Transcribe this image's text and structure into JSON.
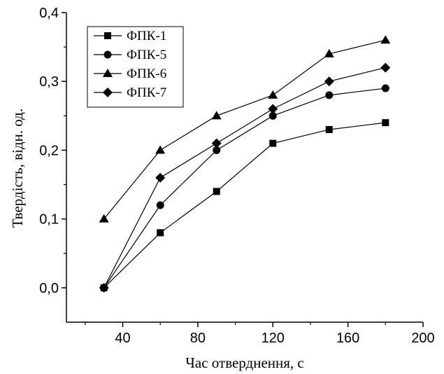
{
  "chart_data": {
    "type": "line",
    "title": "",
    "xlabel": "Час отверднення, с",
    "ylabel": "Твердість, відн. од.",
    "xlim": [
      10,
      200
    ],
    "ylim": [
      -0.05,
      0.4
    ],
    "x_ticks": [
      {
        "value": 40,
        "label": "40"
      },
      {
        "value": 80,
        "label": "80"
      },
      {
        "value": 120,
        "label": "120"
      },
      {
        "value": 160,
        "label": "160"
      },
      {
        "value": 200,
        "label": "200"
      }
    ],
    "y_ticks": [
      {
        "value": 0.0,
        "label": "0,0"
      },
      {
        "value": 0.1,
        "label": "0,1"
      },
      {
        "value": 0.2,
        "label": "0,2"
      },
      {
        "value": 0.3,
        "label": "0,3"
      },
      {
        "value": 0.4,
        "label": "0,4"
      }
    ],
    "grid": false,
    "legend_position": "top-left",
    "series": [
      {
        "name": "ФПК-1",
        "marker": "square",
        "points": [
          [
            30,
            0.0
          ],
          [
            60,
            0.08
          ],
          [
            90,
            0.14
          ],
          [
            120,
            0.21
          ],
          [
            150,
            0.23
          ],
          [
            180,
            0.24
          ]
        ]
      },
      {
        "name": "ФПК-5",
        "marker": "circle",
        "points": [
          [
            30,
            0.0
          ],
          [
            60,
            0.12
          ],
          [
            90,
            0.2
          ],
          [
            120,
            0.25
          ],
          [
            150,
            0.28
          ],
          [
            180,
            0.29
          ]
        ]
      },
      {
        "name": "ФПК-6",
        "marker": "triangle",
        "points": [
          [
            30,
            0.1
          ],
          [
            60,
            0.2
          ],
          [
            90,
            0.25
          ],
          [
            120,
            0.28
          ],
          [
            150,
            0.34
          ],
          [
            180,
            0.36
          ]
        ]
      },
      {
        "name": "ФПК-7",
        "marker": "diamond",
        "points": [
          [
            30,
            0.0
          ],
          [
            60,
            0.16
          ],
          [
            90,
            0.21
          ],
          [
            120,
            0.26
          ],
          [
            150,
            0.3
          ],
          [
            180,
            0.32
          ]
        ]
      }
    ]
  }
}
